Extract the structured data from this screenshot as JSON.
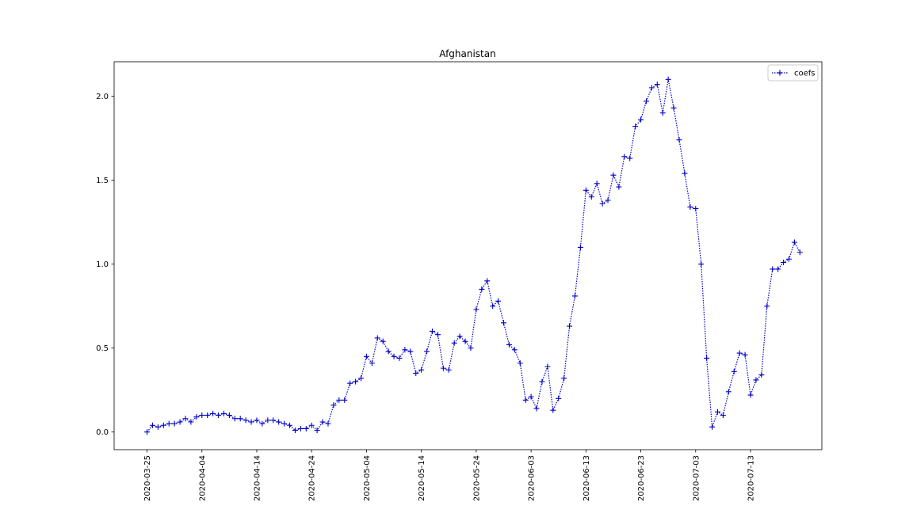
{
  "chart_data": {
    "type": "line",
    "title": "Afghanistan",
    "xlabel": "",
    "ylabel": "",
    "x_start": "2020-03-25",
    "x_end": "2020-07-23",
    "xlim": [
      "2020-03-19",
      "2020-07-26"
    ],
    "ylim": [
      -0.105,
      2.205
    ],
    "xticks": [
      "2020-03-25",
      "2020-04-04",
      "2020-04-14",
      "2020-04-24",
      "2020-05-04",
      "2020-05-14",
      "2020-05-24",
      "2020-06-03",
      "2020-06-13",
      "2020-06-23",
      "2020-07-03",
      "2020-07-13"
    ],
    "yticks": [
      0.0,
      0.5,
      1.0,
      1.5,
      2.0
    ],
    "ytick_labels": [
      "0.0",
      "0.5",
      "1.0",
      "1.5",
      "2.0"
    ],
    "legend_position": "top-right",
    "grid": false,
    "series": [
      {
        "name": "coefs",
        "color": "#0000cc",
        "line_style": "dotted",
        "marker": "plus",
        "values": [
          0.0,
          0.04,
          0.03,
          0.04,
          0.05,
          0.05,
          0.06,
          0.08,
          0.06,
          0.09,
          0.1,
          0.1,
          0.11,
          0.1,
          0.11,
          0.1,
          0.08,
          0.08,
          0.07,
          0.06,
          0.07,
          0.05,
          0.07,
          0.07,
          0.06,
          0.05,
          0.04,
          0.01,
          0.02,
          0.02,
          0.04,
          0.01,
          0.06,
          0.05,
          0.16,
          0.19,
          0.19,
          0.29,
          0.3,
          0.32,
          0.45,
          0.41,
          0.56,
          0.54,
          0.48,
          0.45,
          0.44,
          0.49,
          0.48,
          0.35,
          0.37,
          0.48,
          0.6,
          0.58,
          0.38,
          0.37,
          0.53,
          0.57,
          0.54,
          0.5,
          0.73,
          0.85,
          0.9,
          0.75,
          0.78,
          0.65,
          0.52,
          0.49,
          0.41,
          0.19,
          0.21,
          0.14,
          0.3,
          0.39,
          0.13,
          0.2,
          0.32,
          0.63,
          0.81,
          1.1,
          1.44,
          1.4,
          1.48,
          1.36,
          1.38,
          1.53,
          1.46,
          1.64,
          1.63,
          1.82,
          1.86,
          1.97,
          2.05,
          2.07,
          1.9,
          2.1,
          1.93,
          1.74,
          1.54,
          1.34,
          1.33,
          1.0,
          0.44,
          0.03,
          0.12,
          0.1,
          0.24,
          0.36,
          0.47,
          0.46,
          0.22,
          0.31,
          0.34,
          0.75,
          0.97,
          0.97,
          1.01,
          1.03,
          1.13,
          1.07
        ]
      }
    ]
  }
}
